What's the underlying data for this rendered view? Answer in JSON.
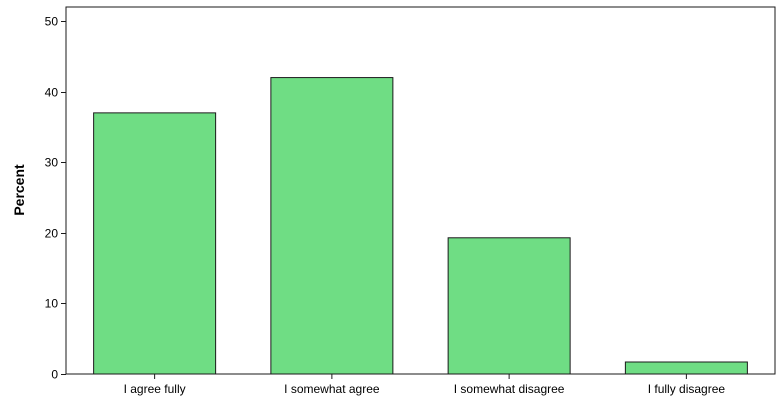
{
  "chart_data": {
    "type": "bar",
    "title": "",
    "xlabel": "",
    "ylabel": "Percent",
    "categories": [
      "I agree fully",
      "I somewhat agree",
      "I somewhat disagree",
      "I fully disagree"
    ],
    "values": [
      37.0,
      42.0,
      19.3,
      1.7
    ],
    "ylim": [
      0,
      52
    ],
    "yticks": [
      "0",
      "10",
      "20",
      "30",
      "40",
      "50"
    ],
    "grid": false,
    "bar_color": "#6fdd84",
    "bar_edge_color": "#1a1a1a"
  }
}
